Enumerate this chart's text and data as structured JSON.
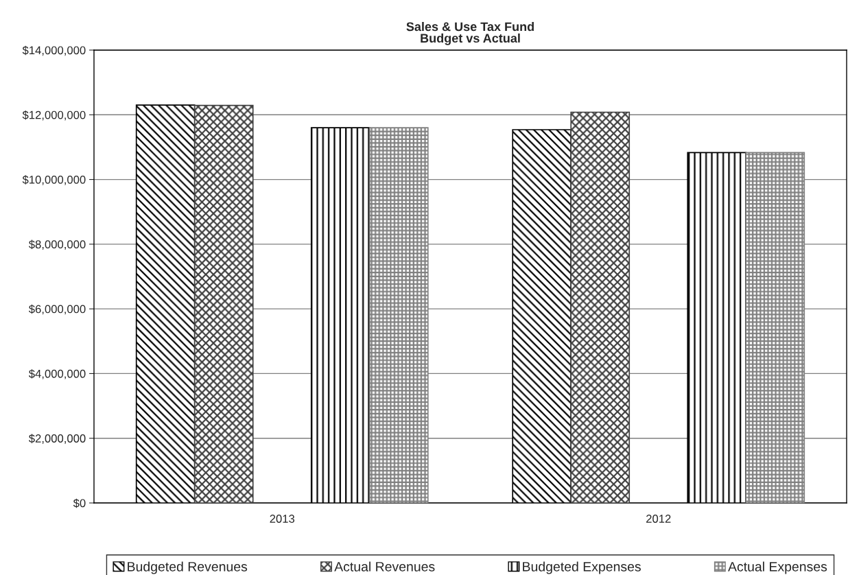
{
  "chart_data": {
    "type": "bar",
    "title": "Sales & Use Tax Fund\nBudget vs Actual",
    "categories": [
      "2013",
      "2012"
    ],
    "series": [
      {
        "name": "Budgeted Revenues",
        "color": "#000000",
        "values": [
          12300000,
          11540000
        ]
      },
      {
        "name": "Actual Revenues",
        "color": "#404040",
        "values": [
          12290000,
          12080000
        ]
      },
      {
        "name": "Budgeted Expenses",
        "color": "#000000",
        "values": [
          11600000,
          10830000
        ]
      },
      {
        "name": "Actual Expenses",
        "color": "#808080",
        "values": [
          11600000,
          10830000
        ]
      }
    ],
    "ylim": [
      0,
      14000000
    ],
    "yticks": [
      {
        "value": 0,
        "label": "$0"
      },
      {
        "value": 2000000,
        "label": "$2,000,000"
      },
      {
        "value": 4000000,
        "label": "$4,000,000"
      },
      {
        "value": 6000000,
        "label": "$6,000,000"
      },
      {
        "value": 8000000,
        "label": "$8,000,000"
      },
      {
        "value": 10000000,
        "label": "$10,000,000"
      },
      {
        "value": 12000000,
        "label": "$12,000,000"
      },
      {
        "value": 14000000,
        "label": "$14,000,000"
      }
    ],
    "grid": "y",
    "legend": "bottom"
  }
}
